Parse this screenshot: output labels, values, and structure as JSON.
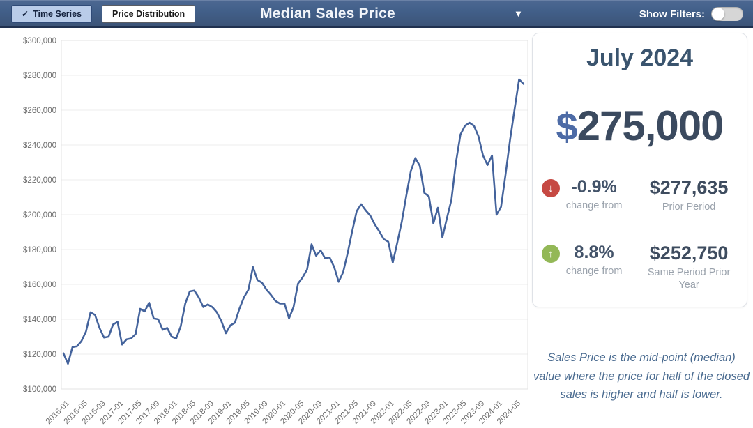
{
  "header": {
    "tabs": [
      {
        "label": "Time Series",
        "checked": true
      },
      {
        "label": "Price Distribution",
        "checked": false
      }
    ],
    "title": "Median Sales Price",
    "show_filters_label": "Show Filters:",
    "filters_on": false
  },
  "summary_card": {
    "period_label": "July 2024",
    "currency_symbol": "$",
    "value": "275,000",
    "changes": [
      {
        "direction": "down",
        "arrow": "↓",
        "color": "#c64943",
        "pct": "-0.9%",
        "caption": "change from",
        "value": "$277,635",
        "value_caption": "Prior Period"
      },
      {
        "direction": "up",
        "arrow": "↑",
        "color": "#93b857",
        "pct": "8.8%",
        "caption": "change from",
        "value": "$252,750",
        "value_caption": "Same Period Prior Year"
      }
    ]
  },
  "description": "Sales Price is the mid-point (median) value where the price for half of the closed sales is higher and half is lower.",
  "chart_data": {
    "type": "line",
    "title": "Median Sales Price",
    "ylabel": "",
    "xlabel": "",
    "ylim": [
      100000,
      300000
    ],
    "y_tick_step": 20000,
    "x_tick_every": 4,
    "grid": true,
    "legend": "none",
    "line_color": "#44639c",
    "x": [
      "2016-01",
      "2016-02",
      "2016-03",
      "2016-04",
      "2016-05",
      "2016-06",
      "2016-07",
      "2016-08",
      "2016-09",
      "2016-10",
      "2016-11",
      "2016-12",
      "2017-01",
      "2017-02",
      "2017-03",
      "2017-04",
      "2017-05",
      "2017-06",
      "2017-07",
      "2017-08",
      "2017-09",
      "2017-10",
      "2017-11",
      "2017-12",
      "2018-01",
      "2018-02",
      "2018-03",
      "2018-04",
      "2018-05",
      "2018-06",
      "2018-07",
      "2018-08",
      "2018-09",
      "2018-10",
      "2018-11",
      "2018-12",
      "2019-01",
      "2019-02",
      "2019-03",
      "2019-04",
      "2019-05",
      "2019-06",
      "2019-07",
      "2019-08",
      "2019-09",
      "2019-10",
      "2019-11",
      "2019-12",
      "2020-01",
      "2020-02",
      "2020-03",
      "2020-04",
      "2020-05",
      "2020-06",
      "2020-07",
      "2020-08",
      "2020-09",
      "2020-10",
      "2020-11",
      "2020-12",
      "2021-01",
      "2021-02",
      "2021-03",
      "2021-04",
      "2021-05",
      "2021-06",
      "2021-07",
      "2021-08",
      "2021-09",
      "2021-10",
      "2021-11",
      "2021-12",
      "2022-01",
      "2022-02",
      "2022-03",
      "2022-04",
      "2022-05",
      "2022-06",
      "2022-07",
      "2022-08",
      "2022-09",
      "2022-10",
      "2022-11",
      "2022-12",
      "2023-01",
      "2023-02",
      "2023-03",
      "2023-04",
      "2023-05",
      "2023-06",
      "2023-07",
      "2023-08",
      "2023-09",
      "2023-10",
      "2023-11",
      "2023-12",
      "2024-01",
      "2024-02",
      "2024-03",
      "2024-04",
      "2024-05",
      "2024-06",
      "2024-07"
    ],
    "values": [
      120500,
      114500,
      124000,
      124500,
      127500,
      133000,
      144000,
      142500,
      135000,
      129500,
      130000,
      137000,
      138500,
      125500,
      128500,
      129000,
      131500,
      146000,
      144500,
      149500,
      140500,
      140000,
      134000,
      135000,
      130000,
      129000,
      136000,
      149000,
      156000,
      156500,
      152500,
      147000,
      148500,
      147000,
      144000,
      139000,
      132000,
      136500,
      138000,
      146000,
      152500,
      157000,
      170000,
      162500,
      161000,
      157000,
      154000,
      150500,
      149000,
      149000,
      140500,
      147000,
      160500,
      164000,
      168500,
      183000,
      176500,
      179500,
      175000,
      175500,
      170000,
      161500,
      167000,
      178000,
      190500,
      202000,
      206000,
      202500,
      199500,
      194500,
      190500,
      186000,
      184500,
      172500,
      184000,
      196000,
      211000,
      225000,
      232500,
      228000,
      212500,
      210500,
      195000,
      204000,
      187000,
      198000,
      208500,
      230000,
      246000,
      251000,
      252750,
      251000,
      245000,
      234000,
      228500,
      234000,
      200000,
      204500,
      223000,
      243000,
      260500,
      277635,
      275000
    ]
  }
}
